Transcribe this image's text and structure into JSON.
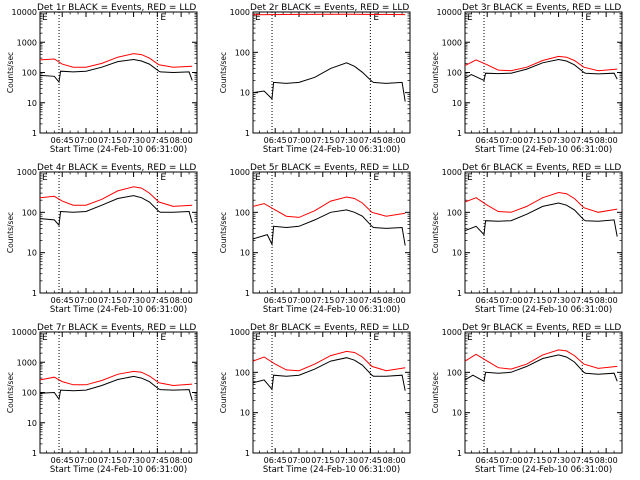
{
  "figure": {
    "start_time_label": "Start Time (24-Feb-10 06:31:00)",
    "legend_mark": "E"
  },
  "chart_data": [
    {
      "type": "line",
      "title": "Det 1r BLACK = Events, RED = LLD",
      "ylabel": "Counts/sec",
      "xlabel": "Start Time (24-Feb-10 06:31:00)",
      "xticks": [
        "06:45",
        "07:00",
        "07:15",
        "07:30",
        "07:45",
        "08:00"
      ],
      "yticks": [
        "1",
        "10",
        "100",
        "1000",
        "10000"
      ],
      "ylog": true,
      "ylim": [
        1,
        10000
      ],
      "xlim_minutes_after_start": [
        0,
        99
      ],
      "dotted_lines_at": [
        "06:43",
        "07:45"
      ],
      "series": [
        {
          "name": "Events",
          "color": "#000000",
          "x": [
            "06:31",
            "06:40",
            "06:43",
            "06:44",
            "06:52",
            "07:00",
            "07:10",
            "07:20",
            "07:30",
            "07:35",
            "07:40",
            "07:46",
            "07:47",
            "07:55",
            "08:05",
            "08:07"
          ],
          "values": [
            80,
            75,
            48,
            110,
            105,
            110,
            150,
            230,
            270,
            240,
            190,
            110,
            105,
            100,
            105,
            55
          ]
        },
        {
          "name": "LLD",
          "color": "#ff0000",
          "x": [
            "06:31",
            "06:40",
            "06:45",
            "06:52",
            "07:00",
            "07:10",
            "07:20",
            "07:30",
            "07:35",
            "07:40",
            "07:46",
            "07:55",
            "08:07"
          ],
          "values": [
            260,
            280,
            190,
            150,
            150,
            200,
            320,
            420,
            390,
            300,
            180,
            150,
            160
          ]
        }
      ]
    },
    {
      "type": "line",
      "title": "Det 2r BLACK = Events, RED = LLD",
      "ylabel": "Counts/sec",
      "xlabel": "Start Time (24-Feb-10 06:31:00)",
      "xticks": [
        "06:45",
        "07:00",
        "07:15",
        "07:30",
        "07:45",
        "08:00"
      ],
      "yticks": [
        "1",
        "10",
        "100",
        "1000"
      ],
      "ylog": true,
      "ylim": [
        1,
        1000
      ],
      "xlim_minutes_after_start": [
        0,
        99
      ],
      "dotted_lines_at": [
        "06:43",
        "07:45"
      ],
      "series": [
        {
          "name": "Events",
          "color": "#000000",
          "x": [
            "06:31",
            "06:38",
            "06:43",
            "06:44",
            "06:52",
            "07:00",
            "07:10",
            "07:20",
            "07:30",
            "07:35",
            "07:40",
            "07:46",
            "07:47",
            "07:55",
            "08:05",
            "08:07"
          ],
          "values": [
            10,
            11,
            7,
            18,
            17,
            18,
            24,
            40,
            55,
            45,
            32,
            19,
            18,
            17,
            18,
            6
          ]
        },
        {
          "name": "LLD",
          "color": "#ff0000",
          "x": [
            "06:31",
            "07:00",
            "07:30",
            "08:07"
          ],
          "values": [
            850,
            870,
            880,
            860
          ]
        }
      ]
    },
    {
      "type": "line",
      "title": "Det 3r BLACK = Events, RED = LLD",
      "ylabel": "Counts/sec",
      "xlabel": "Start Time (24-Feb-10 06:31:00)",
      "xticks": [
        "06:45",
        "07:00",
        "07:15",
        "07:30",
        "07:45",
        "08:00"
      ],
      "yticks": [
        "1",
        "10",
        "100",
        "1000",
        "10000"
      ],
      "ylog": true,
      "ylim": [
        1,
        10000
      ],
      "xlim_minutes_after_start": [
        0,
        99
      ],
      "dotted_lines_at": [
        "06:43",
        "07:45"
      ],
      "series": [
        {
          "name": "Events",
          "color": "#000000",
          "x": [
            "06:31",
            "06:35",
            "06:43",
            "06:44",
            "06:52",
            "07:00",
            "07:10",
            "07:20",
            "07:30",
            "07:35",
            "07:40",
            "07:46",
            "07:47",
            "07:55",
            "08:05",
            "08:07"
          ],
          "values": [
            65,
            85,
            55,
            95,
            92,
            95,
            130,
            210,
            270,
            240,
            180,
            100,
            95,
            90,
            95,
            60
          ]
        },
        {
          "name": "LLD",
          "color": "#ff0000",
          "x": [
            "06:31",
            "06:38",
            "06:45",
            "06:52",
            "07:00",
            "07:10",
            "07:20",
            "07:30",
            "07:35",
            "07:40",
            "07:46",
            "07:55",
            "08:07"
          ],
          "values": [
            170,
            260,
            180,
            120,
            115,
            150,
            250,
            340,
            320,
            250,
            150,
            115,
            130
          ]
        }
      ]
    },
    {
      "type": "line",
      "title": "Det 4r BLACK = Events, RED = LLD",
      "ylabel": "Counts/sec",
      "xlabel": "Start Time (24-Feb-10 06:31:00)",
      "xticks": [
        "06:45",
        "07:00",
        "07:15",
        "07:30",
        "07:45",
        "08:00"
      ],
      "yticks": [
        "1",
        "10",
        "100",
        "1000"
      ],
      "ylog": true,
      "ylim": [
        1,
        1000
      ],
      "xlim_minutes_after_start": [
        0,
        99
      ],
      "dotted_lines_at": [
        "06:43",
        "07:45"
      ],
      "series": [
        {
          "name": "Events",
          "color": "#000000",
          "x": [
            "06:31",
            "06:40",
            "06:43",
            "06:44",
            "06:52",
            "07:00",
            "07:10",
            "07:20",
            "07:30",
            "07:35",
            "07:40",
            "07:46",
            "07:47",
            "07:55",
            "08:05",
            "08:07"
          ],
          "values": [
            70,
            65,
            48,
            105,
            100,
            105,
            150,
            220,
            260,
            230,
            180,
            105,
            100,
            100,
            105,
            55
          ]
        },
        {
          "name": "LLD",
          "color": "#ff0000",
          "x": [
            "06:31",
            "06:40",
            "06:45",
            "06:52",
            "07:00",
            "07:10",
            "07:20",
            "07:30",
            "07:35",
            "07:40",
            "07:46",
            "07:55",
            "08:07"
          ],
          "values": [
            230,
            250,
            190,
            150,
            150,
            210,
            340,
            430,
            400,
            300,
            180,
            140,
            150
          ]
        }
      ]
    },
    {
      "type": "line",
      "title": "Det 5r BLACK = Events, RED = LLD",
      "ylabel": "Counts/sec",
      "xlabel": "Start Time (24-Feb-10 06:31:00)",
      "xticks": [
        "06:45",
        "07:00",
        "07:15",
        "07:30",
        "07:45",
        "08:00"
      ],
      "yticks": [
        "1",
        "10",
        "100",
        "1000"
      ],
      "ylog": true,
      "ylim": [
        1,
        1000
      ],
      "xlim_minutes_after_start": [
        0,
        99
      ],
      "dotted_lines_at": [
        "06:43",
        "07:45"
      ],
      "series": [
        {
          "name": "Events",
          "color": "#000000",
          "x": [
            "06:31",
            "06:40",
            "06:43",
            "06:44",
            "06:52",
            "07:00",
            "07:10",
            "07:20",
            "07:30",
            "07:35",
            "07:40",
            "07:46",
            "07:47",
            "07:55",
            "08:05",
            "08:07"
          ],
          "values": [
            22,
            28,
            16,
            45,
            42,
            45,
            65,
            100,
            115,
            100,
            80,
            45,
            42,
            40,
            42,
            15
          ]
        },
        {
          "name": "LLD",
          "color": "#ff0000",
          "x": [
            "06:31",
            "06:38",
            "06:45",
            "06:52",
            "07:00",
            "07:10",
            "07:20",
            "07:30",
            "07:35",
            "07:40",
            "07:46",
            "07:55",
            "08:07"
          ],
          "values": [
            140,
            165,
            115,
            80,
            75,
            110,
            190,
            240,
            220,
            170,
            100,
            80,
            95
          ]
        }
      ]
    },
    {
      "type": "line",
      "title": "Det 6r BLACK = Events, RED = LLD",
      "ylabel": "Counts/sec",
      "xlabel": "Start Time (24-Feb-10 06:31:00)",
      "xticks": [
        "06:45",
        "07:00",
        "07:15",
        "07:30",
        "07:45",
        "08:00"
      ],
      "yticks": [
        "1",
        "10",
        "100",
        "1000"
      ],
      "ylog": true,
      "ylim": [
        1,
        1000
      ],
      "xlim_minutes_after_start": [
        0,
        99
      ],
      "dotted_lines_at": [
        "06:43",
        "07:45"
      ],
      "series": [
        {
          "name": "Events",
          "color": "#000000",
          "x": [
            "06:31",
            "06:38",
            "06:43",
            "06:44",
            "06:52",
            "07:00",
            "07:10",
            "07:20",
            "07:30",
            "07:35",
            "07:40",
            "07:46",
            "07:47",
            "07:55",
            "08:05",
            "08:07"
          ],
          "values": [
            35,
            45,
            28,
            62,
            60,
            62,
            90,
            140,
            170,
            150,
            115,
            65,
            62,
            60,
            65,
            25
          ]
        },
        {
          "name": "LLD",
          "color": "#ff0000",
          "x": [
            "06:31",
            "06:38",
            "06:45",
            "06:52",
            "07:00",
            "07:10",
            "07:20",
            "07:30",
            "07:35",
            "07:40",
            "07:46",
            "07:55",
            "08:07"
          ],
          "values": [
            180,
            230,
            150,
            105,
            100,
            140,
            230,
            310,
            290,
            220,
            130,
            100,
            120
          ]
        }
      ]
    },
    {
      "type": "line",
      "title": "Det 7r BLACK = Events, RED = LLD",
      "ylabel": "Counts/sec",
      "xlabel": "Start Time (24-Feb-10 06:31:00)",
      "xticks": [
        "06:45",
        "07:00",
        "07:15",
        "07:30",
        "07:45",
        "08:00"
      ],
      "yticks": [
        "1",
        "10",
        "100",
        "1000",
        "10000"
      ],
      "ylog": true,
      "ylim": [
        1,
        10000
      ],
      "xlim_minutes_after_start": [
        0,
        99
      ],
      "dotted_lines_at": [
        "06:43",
        "07:45"
      ],
      "series": [
        {
          "name": "Events",
          "color": "#000000",
          "x": [
            "06:31",
            "06:40",
            "06:43",
            "06:44",
            "06:52",
            "07:00",
            "07:10",
            "07:20",
            "07:30",
            "07:35",
            "07:40",
            "07:46",
            "07:47",
            "07:55",
            "08:05",
            "08:07"
          ],
          "values": [
            95,
            100,
            60,
            120,
            115,
            120,
            170,
            270,
            340,
            300,
            230,
            130,
            125,
            120,
            125,
            55
          ]
        },
        {
          "name": "LLD",
          "color": "#ff0000",
          "x": [
            "06:31",
            "06:40",
            "06:45",
            "06:52",
            "07:00",
            "07:10",
            "07:20",
            "07:30",
            "07:35",
            "07:40",
            "07:46",
            "07:55",
            "08:07"
          ],
          "values": [
            260,
            320,
            230,
            180,
            180,
            250,
            400,
            500,
            470,
            350,
            210,
            170,
            190
          ]
        }
      ]
    },
    {
      "type": "line",
      "title": "Det 8r BLACK = Events, RED = LLD",
      "ylabel": "Counts/sec",
      "xlabel": "Start Time (24-Feb-10 06:31:00)",
      "xticks": [
        "06:45",
        "07:00",
        "07:15",
        "07:30",
        "07:45",
        "08:00"
      ],
      "yticks": [
        "1",
        "10",
        "100",
        "1000"
      ],
      "ylog": true,
      "ylim": [
        1,
        1000
      ],
      "xlim_minutes_after_start": [
        0,
        99
      ],
      "dotted_lines_at": [
        "06:43",
        "07:45"
      ],
      "series": [
        {
          "name": "Events",
          "color": "#000000",
          "x": [
            "06:31",
            "06:38",
            "06:43",
            "06:44",
            "06:52",
            "07:00",
            "07:10",
            "07:20",
            "07:30",
            "07:35",
            "07:40",
            "07:46",
            "07:47",
            "07:55",
            "08:05",
            "08:07"
          ],
          "values": [
            55,
            65,
            38,
            85,
            80,
            85,
            120,
            190,
            230,
            200,
            150,
            85,
            80,
            80,
            85,
            35
          ]
        },
        {
          "name": "LLD",
          "color": "#ff0000",
          "x": [
            "06:31",
            "06:38",
            "06:45",
            "06:52",
            "07:00",
            "07:10",
            "07:20",
            "07:30",
            "07:35",
            "07:40",
            "07:46",
            "07:55",
            "08:07"
          ],
          "values": [
            190,
            240,
            160,
            115,
            110,
            160,
            260,
            330,
            310,
            240,
            140,
            110,
            130
          ]
        }
      ]
    },
    {
      "type": "line",
      "title": "Det 9r BLACK = Events, RED = LLD",
      "ylabel": "Counts/sec",
      "xlabel": "Start Time (24-Feb-10 06:31:00)",
      "xticks": [
        "06:45",
        "07:00",
        "07:15",
        "07:30",
        "07:45",
        "08:00"
      ],
      "yticks": [
        "1",
        "10",
        "100",
        "1000"
      ],
      "ylog": true,
      "ylim": [
        1,
        1000
      ],
      "xlim_minutes_after_start": [
        0,
        99
      ],
      "dotted_lines_at": [
        "06:43",
        "07:45"
      ],
      "series": [
        {
          "name": "Events",
          "color": "#000000",
          "x": [
            "06:31",
            "06:36",
            "06:43",
            "06:44",
            "06:52",
            "07:00",
            "07:10",
            "07:20",
            "07:30",
            "07:35",
            "07:40",
            "07:46",
            "07:47",
            "07:55",
            "08:05",
            "08:07"
          ],
          "values": [
            65,
            85,
            60,
            100,
            95,
            100,
            140,
            220,
            270,
            240,
            180,
            100,
            95,
            90,
            95,
            60
          ]
        },
        {
          "name": "LLD",
          "color": "#ff0000",
          "x": [
            "06:31",
            "06:38",
            "06:45",
            "06:52",
            "07:00",
            "07:10",
            "07:20",
            "07:30",
            "07:35",
            "07:40",
            "07:46",
            "07:55",
            "08:07"
          ],
          "values": [
            190,
            280,
            190,
            130,
            120,
            160,
            270,
            360,
            340,
            260,
            160,
            125,
            140
          ]
        }
      ]
    }
  ]
}
